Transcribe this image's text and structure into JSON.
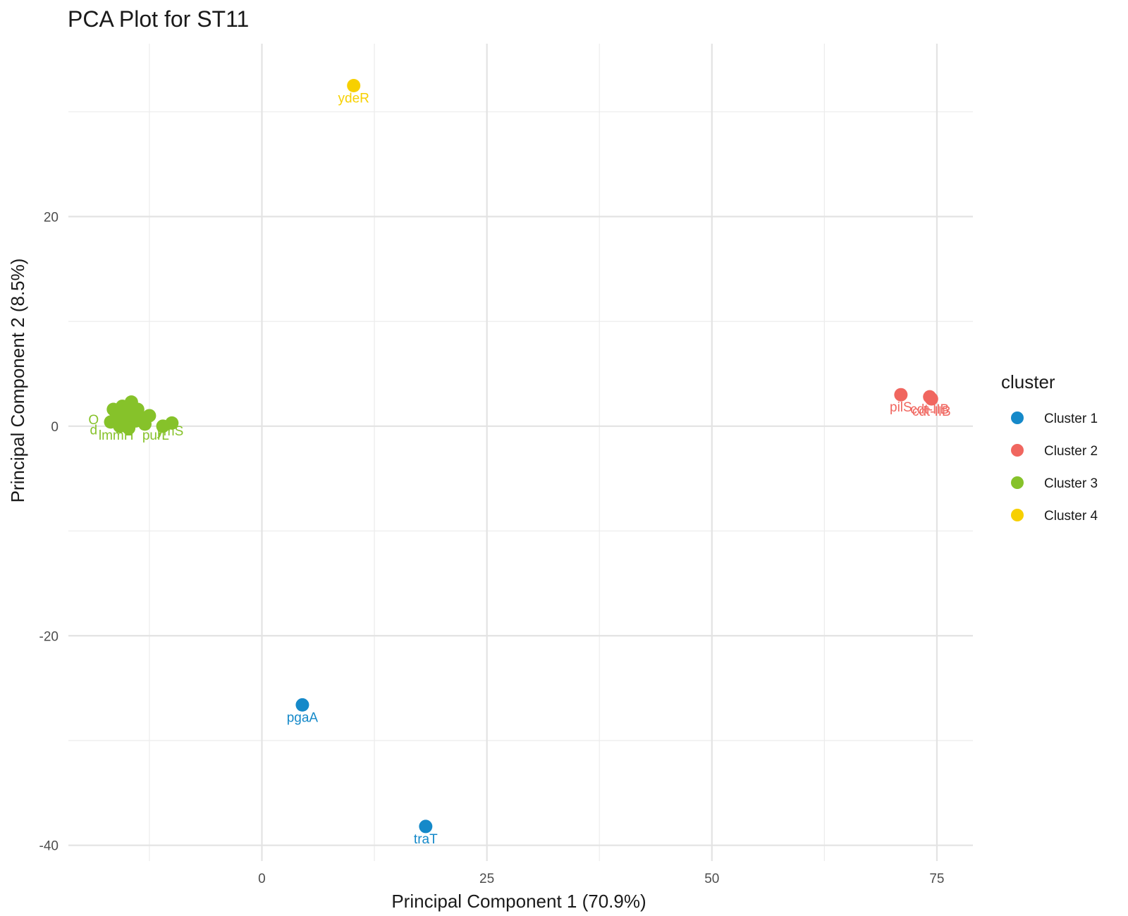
{
  "chart_data": {
    "type": "scatter",
    "title": "PCA Plot for ST11",
    "xlabel": "Principal Component 1 (70.9%)",
    "ylabel": "Principal Component 2 (8.5%)",
    "xlim": [
      -21.5,
      79
    ],
    "ylim": [
      -41.5,
      36.5
    ],
    "x_ticks": [
      0,
      25,
      50,
      75
    ],
    "y_ticks": [
      -40,
      -20,
      0,
      20
    ],
    "grid": true,
    "legend": {
      "title": "cluster",
      "position": "right"
    },
    "series": [
      {
        "name": "Cluster 1",
        "color": "#1589c9",
        "points": [
          {
            "x": 4.5,
            "y": -26.6,
            "label": "pgaA"
          },
          {
            "x": 18.2,
            "y": -38.2,
            "label": "traT"
          }
        ]
      },
      {
        "name": "Cluster 2",
        "color": "#f0665f",
        "points": [
          {
            "x": 71.0,
            "y": 3.0,
            "label": "pilS"
          },
          {
            "x": 74.2,
            "y": 2.8,
            "label": "cdt-IIB"
          },
          {
            "x": 74.4,
            "y": 2.6,
            "label": "cdt-IIB"
          }
        ]
      },
      {
        "name": "Cluster 3",
        "color": "#86c22a",
        "points": [
          {
            "x": -16.5,
            "y": 1.6,
            "label": ""
          },
          {
            "x": -16.0,
            "y": 1.2,
            "label": ""
          },
          {
            "x": -15.5,
            "y": 1.9,
            "label": ""
          },
          {
            "x": -15.0,
            "y": 0.8,
            "label": ""
          },
          {
            "x": -14.5,
            "y": 2.3,
            "label": ""
          },
          {
            "x": -14.0,
            "y": 0.5,
            "label": ""
          },
          {
            "x": -16.8,
            "y": 0.4,
            "label": ""
          },
          {
            "x": -15.8,
            "y": 0.0,
            "label": ""
          },
          {
            "x": -15.2,
            "y": 1.4,
            "label": ""
          },
          {
            "x": -13.5,
            "y": 0.9,
            "label": ""
          },
          {
            "x": -12.5,
            "y": 1.0,
            "label": ""
          },
          {
            "x": -14.8,
            "y": -0.2,
            "label": ""
          },
          {
            "x": -16.2,
            "y": 0.8,
            "label": ""
          },
          {
            "x": -13.0,
            "y": 0.2,
            "label": ""
          },
          {
            "x": -11.0,
            "y": 0.0,
            "label": ""
          },
          {
            "x": -10.0,
            "y": 0.3,
            "label": ""
          },
          {
            "x": -13.8,
            "y": 1.6,
            "label": ""
          },
          {
            "x": -14.2,
            "y": 1.0,
            "label": ""
          }
        ]
      },
      {
        "name": "Cluster 4",
        "color": "#f7d000",
        "points": [
          {
            "x": 10.2,
            "y": 32.5,
            "label": "ydeR"
          }
        ]
      }
    ],
    "extra_labels": [
      {
        "text": "O",
        "x": -18.7,
        "y": 0.2,
        "color": "#86c22a"
      },
      {
        "text": "c",
        "x": -16.5,
        "y": 0.0,
        "color": "#86c22a"
      },
      {
        "text": "d",
        "x": -18.7,
        "y": -0.8,
        "color": "#86c22a"
      },
      {
        "text": "lmmH",
        "x": -16.2,
        "y": -1.3,
        "color": "#86c22a"
      },
      {
        "text": "purL",
        "x": -11.8,
        "y": -1.3,
        "color": "#86c22a"
      },
      {
        "text": "ymS",
        "x": -10.2,
        "y": -0.9,
        "color": "#86c22a"
      },
      {
        "text": "e",
        "x": -12.8,
        "y": -0.1,
        "color": "#86c22a"
      }
    ]
  }
}
